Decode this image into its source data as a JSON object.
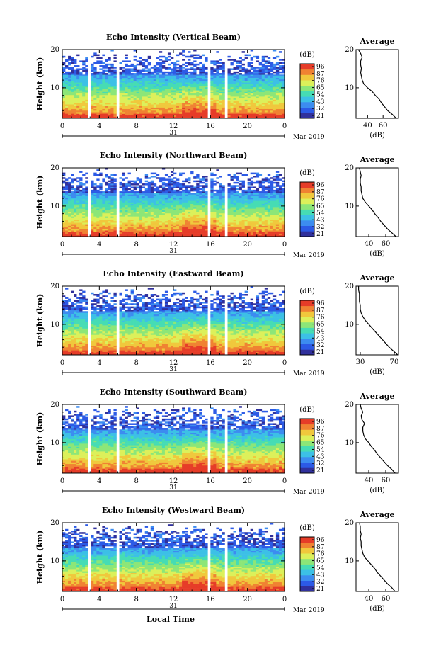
{
  "x_axis_label": "Local Time",
  "date_label": "Mar 2019",
  "day_label": "31",
  "y_axis_label": "Height (km)",
  "colorbar_unit": "(dB)",
  "colorbar_ticks": [
    "96",
    "87",
    "76",
    "65",
    "54",
    "43",
    "32",
    "21"
  ],
  "average_title": "Average",
  "average_unit": "(dB)",
  "colormap": [
    "#30309c",
    "#2c5ae6",
    "#3c8cf0",
    "#3cc0e6",
    "#46dcb4",
    "#8ce678",
    "#dcf05a",
    "#f0c83c",
    "#f08232",
    "#e63c28"
  ],
  "chart_data": [
    {
      "type": "heatmap",
      "title": "Echo Intensity (Vertical Beam)",
      "xlabel": "Local Time",
      "ylabel": "Height (km)",
      "xlim": [
        0,
        24
      ],
      "ylim": [
        2,
        20
      ],
      "xticks": [
        "0",
        "4",
        "8",
        "12",
        "16",
        "20",
        "0"
      ],
      "yticks": [
        10,
        20
      ],
      "color_range_db": [
        21,
        96
      ],
      "data_gaps_hours": [
        [
          1.1,
          1.3
        ],
        [
          2.9,
          3.1
        ],
        [
          5.8,
          6.1
        ],
        [
          15.8,
          16.0
        ],
        [
          17.5,
          17.8
        ]
      ],
      "average_profile": {
        "title": "Average",
        "xlabel": "(dB)",
        "xticks": [
          40,
          60
        ],
        "xlim": [
          25,
          80
        ],
        "height_km": [
          2,
          3,
          4,
          5,
          6,
          7,
          8,
          9,
          10,
          11,
          12,
          13,
          14,
          15,
          16,
          17,
          18,
          19,
          20
        ],
        "value_db": [
          77,
          72,
          66,
          62,
          58,
          55,
          50,
          46,
          40,
          35,
          33,
          32,
          31,
          32,
          31,
          31,
          33,
          31,
          28
        ]
      }
    },
    {
      "type": "heatmap",
      "title": "Echo Intensity (Northward Beam)",
      "xlabel": "Local Time",
      "ylabel": "Height (km)",
      "xlim": [
        0,
        24
      ],
      "ylim": [
        2,
        20
      ],
      "xticks": [
        "0",
        "4",
        "8",
        "12",
        "16",
        "20",
        "0"
      ],
      "yticks": [
        10,
        20
      ],
      "color_range_db": [
        21,
        96
      ],
      "data_gaps_hours": [
        [
          1.1,
          1.3
        ],
        [
          2.9,
          3.1
        ],
        [
          5.8,
          6.1
        ],
        [
          15.8,
          16.0
        ],
        [
          17.5,
          17.8
        ]
      ],
      "average_profile": {
        "title": "Average",
        "xlabel": "(dB)",
        "xticks": [
          40,
          60
        ],
        "xlim": [
          25,
          75
        ],
        "height_km": [
          2,
          3,
          4,
          5,
          6,
          7,
          8,
          9,
          10,
          11,
          12,
          13,
          14,
          15,
          16,
          17,
          18,
          19,
          20
        ],
        "value_db": [
          72,
          67,
          62,
          58,
          54,
          51,
          47,
          44,
          40,
          36,
          33,
          32,
          31,
          31,
          30,
          30,
          31,
          30,
          29
        ]
      }
    },
    {
      "type": "heatmap",
      "title": "Echo Intensity (Eastward Beam)",
      "xlabel": "Local Time",
      "ylabel": "Height (km)",
      "xlim": [
        0,
        24
      ],
      "ylim": [
        2,
        20
      ],
      "xticks": [
        "0",
        "4",
        "8",
        "12",
        "16",
        "20",
        "0"
      ],
      "yticks": [
        10,
        20
      ],
      "color_range_db": [
        21,
        96
      ],
      "data_gaps_hours": [
        [
          1.1,
          1.3
        ],
        [
          2.9,
          3.1
        ],
        [
          5.8,
          6.1
        ],
        [
          15.8,
          16.0
        ],
        [
          17.5,
          17.8
        ]
      ],
      "average_profile": {
        "title": "Average",
        "xlabel": "(dB)",
        "xticks": [
          30,
          70
        ],
        "xlim": [
          25,
          75
        ],
        "height_km": [
          2,
          3,
          4,
          5,
          6,
          7,
          8,
          9,
          10,
          11,
          12,
          13,
          14,
          15,
          16,
          17,
          18,
          19,
          20
        ],
        "value_db": [
          74,
          69,
          64,
          60,
          56,
          52,
          48,
          44,
          40,
          36,
          33,
          31,
          30,
          30,
          29,
          29,
          29,
          28,
          28
        ]
      }
    },
    {
      "type": "heatmap",
      "title": "Echo Intensity (Southward Beam)",
      "xlabel": "Local Time",
      "ylabel": "Height (km)",
      "xlim": [
        0,
        24
      ],
      "ylim": [
        2,
        20
      ],
      "xticks": [
        "0",
        "4",
        "8",
        "12",
        "16",
        "20",
        "0"
      ],
      "yticks": [
        10,
        20
      ],
      "color_range_db": [
        21,
        96
      ],
      "data_gaps_hours": [
        [
          1.1,
          1.3
        ],
        [
          2.9,
          3.1
        ],
        [
          5.8,
          6.1
        ],
        [
          15.8,
          16.0
        ],
        [
          17.5,
          17.8
        ]
      ],
      "average_profile": {
        "title": "Average",
        "xlabel": "(dB)",
        "xticks": [
          40,
          60
        ],
        "xlim": [
          25,
          75
        ],
        "height_km": [
          2,
          3,
          4,
          5,
          6,
          7,
          8,
          9,
          10,
          11,
          12,
          13,
          14,
          15,
          16,
          17,
          18,
          19,
          20
        ],
        "value_db": [
          71,
          67,
          62,
          58,
          54,
          50,
          47,
          43,
          40,
          36,
          34,
          33,
          33,
          35,
          32,
          31,
          33,
          31,
          30
        ]
      }
    },
    {
      "type": "heatmap",
      "title": "Echo Intensity (Westward Beam)",
      "xlabel": "Local Time",
      "ylabel": "Height (km)",
      "xlim": [
        0,
        24
      ],
      "ylim": [
        2,
        20
      ],
      "xticks": [
        "0",
        "4",
        "8",
        "12",
        "16",
        "20",
        "0"
      ],
      "yticks": [
        10,
        20
      ],
      "color_range_db": [
        21,
        96
      ],
      "data_gaps_hours": [
        [
          1.1,
          1.3
        ],
        [
          2.9,
          3.1
        ],
        [
          5.8,
          6.1
        ],
        [
          15.8,
          16.0
        ],
        [
          17.5,
          17.8
        ]
      ],
      "average_profile": {
        "title": "Average",
        "xlabel": "(dB)",
        "xticks": [
          40,
          60
        ],
        "xlim": [
          25,
          75
        ],
        "height_km": [
          2,
          3,
          4,
          5,
          6,
          7,
          8,
          9,
          10,
          11,
          12,
          13,
          14,
          15,
          16,
          17,
          18,
          19,
          20
        ],
        "value_db": [
          71,
          67,
          62,
          58,
          54,
          50,
          47,
          43,
          39,
          35,
          33,
          32,
          31,
          31,
          30,
          31,
          30,
          30,
          29
        ]
      }
    }
  ]
}
